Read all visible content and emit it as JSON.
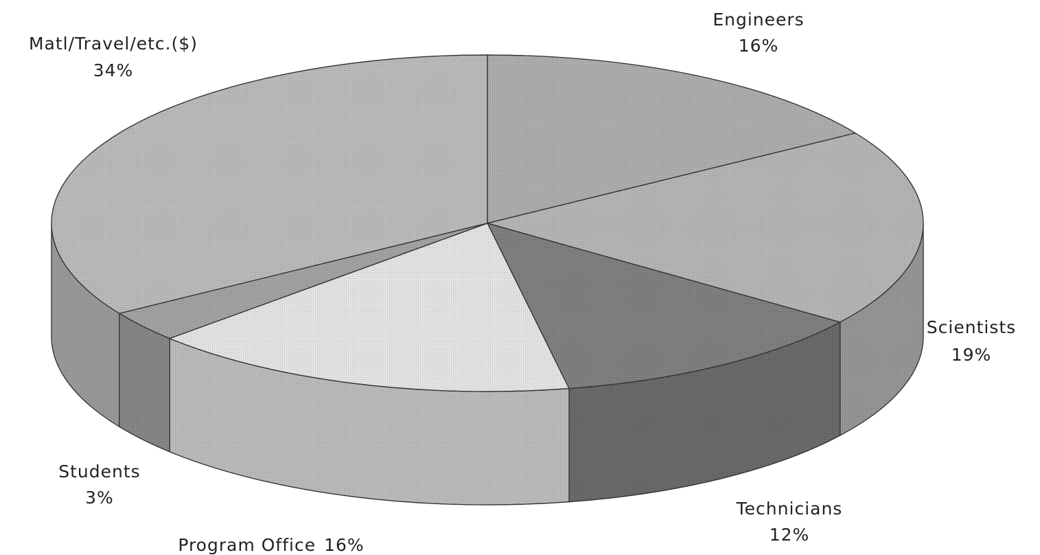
{
  "chart_data": {
    "type": "pie",
    "categories": [
      "Engineers",
      "Scientists",
      "Technicians",
      "Program Office",
      "Students",
      "Matl/Travel/etc.($)"
    ],
    "values": [
      16,
      19,
      12,
      16,
      3,
      34
    ],
    "value_labels": [
      "16%",
      "19%",
      "12%",
      "16%",
      "3%",
      "34%"
    ],
    "colors": [
      "#ababab",
      "#b3b3b3",
      "#7d7d7d",
      "#e2e2e2",
      "#a0a0a0",
      "#b8b8b8"
    ]
  }
}
